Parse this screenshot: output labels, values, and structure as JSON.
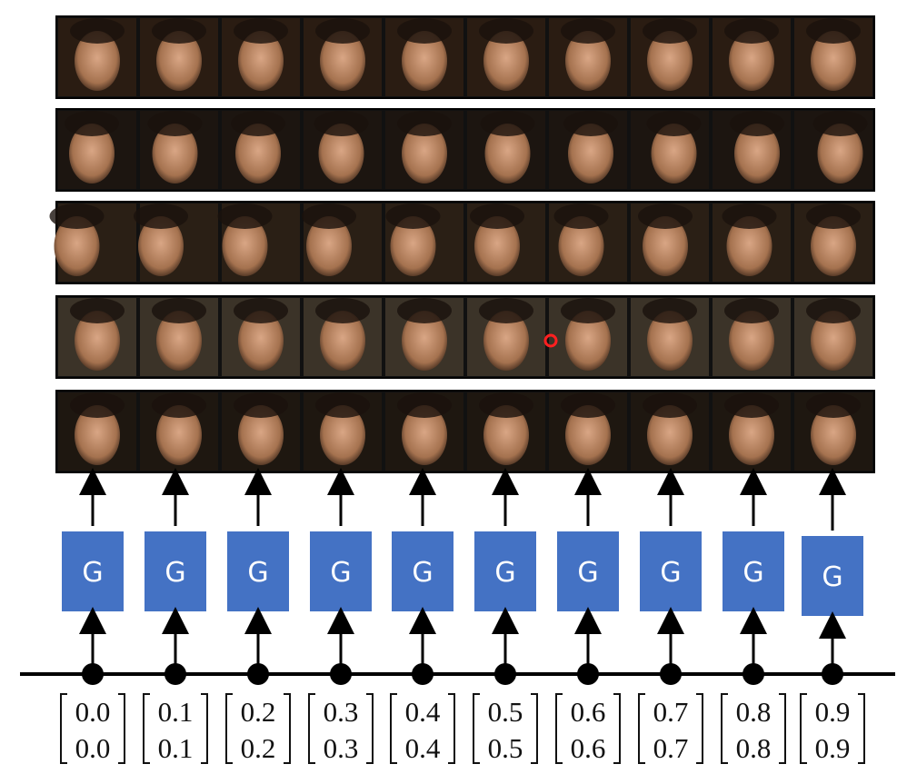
{
  "generators": [
    {
      "label": "G"
    },
    {
      "label": "G"
    },
    {
      "label": "G"
    },
    {
      "label": "G"
    },
    {
      "label": "G"
    },
    {
      "label": "G"
    },
    {
      "label": "G"
    },
    {
      "label": "G"
    },
    {
      "label": "G"
    },
    {
      "label": "G"
    }
  ],
  "vectors": [
    {
      "top": "0.0",
      "bottom": "0.0"
    },
    {
      "top": "0.1",
      "bottom": "0.1"
    },
    {
      "top": "0.2",
      "bottom": "0.2"
    },
    {
      "top": "0.3",
      "bottom": "0.3"
    },
    {
      "top": "0.4",
      "bottom": "0.4"
    },
    {
      "top": "0.5",
      "bottom": "0.5"
    },
    {
      "top": "0.6",
      "bottom": "0.6"
    },
    {
      "top": "0.7",
      "bottom": "0.7"
    },
    {
      "top": "0.8",
      "bottom": "0.8"
    },
    {
      "top": "0.9",
      "bottom": "0.9"
    }
  ]
}
